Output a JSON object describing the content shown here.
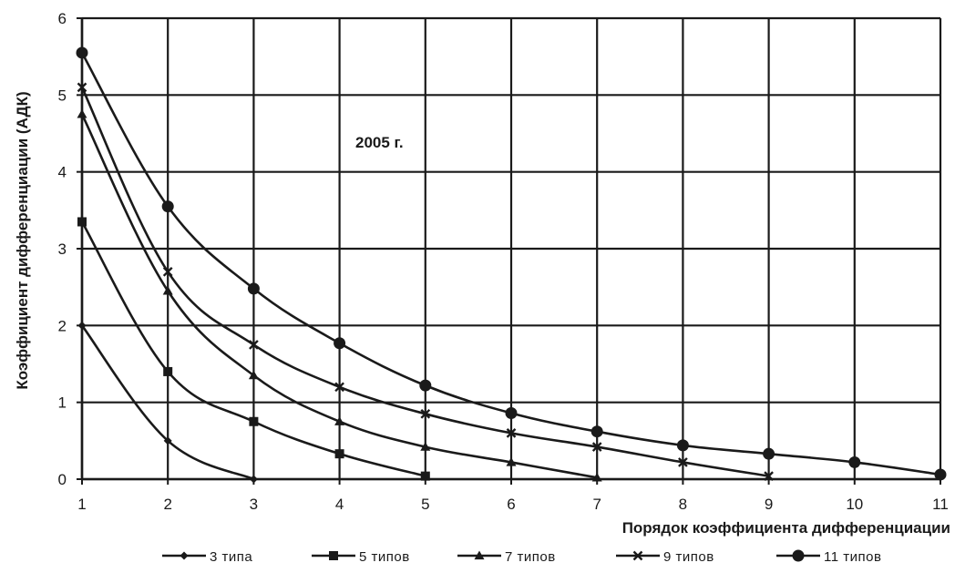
{
  "chart_data": {
    "type": "line",
    "title": "2005 г.",
    "xlabel": "Порядок коэффициента дифференциации",
    "ylabel": "Коэффициент дифференциации (АДК)",
    "x_ticks": [
      "1",
      "2",
      "3",
      "4",
      "5",
      "6",
      "7",
      "8",
      "9",
      "10",
      "11"
    ],
    "y_ticks": [
      "0",
      "1",
      "2",
      "3",
      "4",
      "5",
      "6"
    ],
    "xlim": [
      1,
      11
    ],
    "ylim": [
      0,
      6
    ],
    "grid": true,
    "legend_position": "bottom",
    "series": [
      {
        "name": "3 типа",
        "marker": "diamond",
        "x": [
          1,
          2,
          3
        ],
        "values": [
          2.0,
          0.5,
          0.0
        ]
      },
      {
        "name": "5 типов",
        "marker": "square",
        "x": [
          1,
          2,
          3,
          4,
          5
        ],
        "values": [
          3.35,
          1.4,
          0.75,
          0.33,
          0.04
        ]
      },
      {
        "name": "7 типов",
        "marker": "triangle",
        "x": [
          1,
          2,
          3,
          4,
          5,
          6,
          7
        ],
        "values": [
          4.75,
          2.45,
          1.35,
          0.75,
          0.42,
          0.22,
          0.02
        ]
      },
      {
        "name": "9 типов",
        "marker": "x",
        "x": [
          1,
          2,
          3,
          4,
          5,
          6,
          7,
          8,
          9
        ],
        "values": [
          5.1,
          2.7,
          1.75,
          1.2,
          0.85,
          0.6,
          0.42,
          0.22,
          0.04
        ]
      },
      {
        "name": "11 типов",
        "marker": "circle",
        "x": [
          1,
          2,
          3,
          4,
          5,
          6,
          7,
          8,
          9,
          10,
          11
        ],
        "values": [
          5.55,
          3.55,
          2.48,
          1.77,
          1.22,
          0.86,
          0.62,
          0.44,
          0.33,
          0.22,
          0.06
        ]
      }
    ],
    "colors": {
      "line": "#1a1a1a",
      "grid": "#1a1a1a",
      "background": "#ffffff"
    }
  }
}
